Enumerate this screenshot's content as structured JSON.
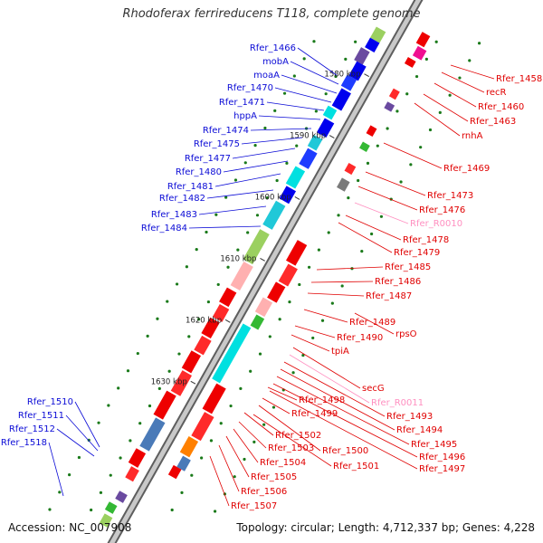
{
  "title": "Rhodoferax ferrireducens T118, complete genome",
  "footer": {
    "accession": "Accession: NC_007908",
    "topology": "Topology: circular; Length: 4,712,337 bp; Genes: 4,228"
  },
  "colors": {
    "reverse_label": "#0b0bd6",
    "forward_label": "#e00000",
    "rna_label": "#ff8fc0",
    "backbone": "#8c8c8c",
    "tick": "#1a7a1a"
  },
  "scale_ticks": [
    "1580 kbp",
    "1590 kbp",
    "1600 kbp",
    "1610 kbp",
    "1620 kbp",
    "1630 kbp"
  ],
  "reverse_labels": [
    "Rfer_1466",
    "mobA",
    "moaA",
    "Rfer_1470",
    "Rfer_1471",
    "hppA",
    "Rfer_1474",
    "Rfer_1475",
    "Rfer_1477",
    "Rfer_1480",
    "Rfer_1481",
    "Rfer_1482",
    "Rfer_1483",
    "Rfer_1484",
    "Rfer_1510",
    "Rfer_1511",
    "Rfer_1512",
    "Rfer_1518"
  ],
  "forward_labels": [
    "Rfer_1458",
    "recR",
    "Rfer_1460",
    "Rfer_1463",
    "rnhA",
    "Rfer_1469",
    "Rfer_1473",
    "Rfer_1476",
    "Rfer_R0010",
    "Rfer_1478",
    "Rfer_1479",
    "Rfer_1485",
    "Rfer_1486",
    "Rfer_1487",
    "Rfer_1489",
    "rpsO",
    "Rfer_1490",
    "tpiA",
    "secG",
    "Rfer_R0011",
    "Rfer_1493",
    "Rfer_1494",
    "Rfer_1495",
    "Rfer_1496",
    "Rfer_1497",
    "Rfer_1498",
    "Rfer_1499",
    "Rfer_1500",
    "Rfer_1501",
    "Rfer_1502",
    "Rfer_1503",
    "Rfer_1504",
    "Rfer_1505",
    "Rfer_1506",
    "Rfer_1507"
  ],
  "rna_genes": [
    "Rfer_R0010",
    "Rfer_R0011"
  ]
}
